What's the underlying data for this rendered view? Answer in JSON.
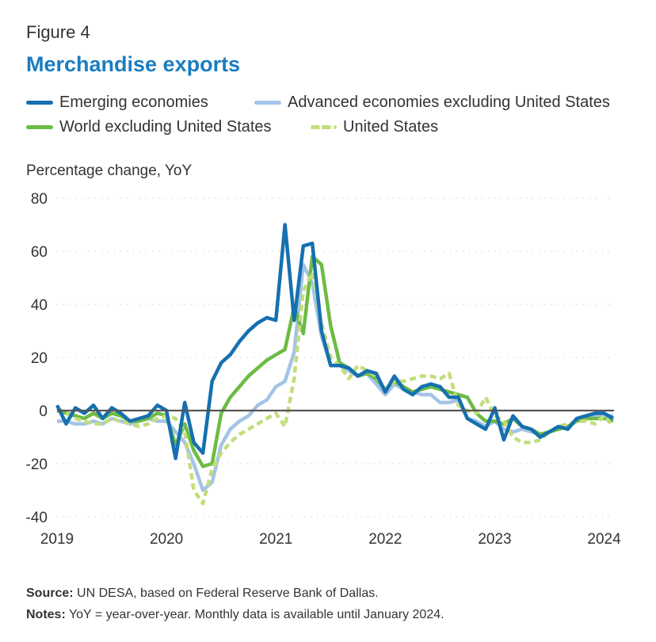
{
  "figure_label": "Figure 4",
  "title": "Merchandise exports",
  "source_label": "Source:",
  "source_text": "UN DESA, based on Federal Reserve Bank of Dallas.",
  "notes_label": "Notes:",
  "notes_text": "YoY = year-over-year. Monthly data is available until January 2024.",
  "chart_data": {
    "type": "line",
    "ylabel": "Percentage change, YoY",
    "ylim": [
      -40,
      80
    ],
    "yticks": [
      -40,
      -20,
      0,
      20,
      40,
      60,
      80
    ],
    "xlim": [
      2019.0,
      2024.09
    ],
    "xticks": [
      2019,
      2020,
      2021,
      2022,
      2023,
      2024
    ],
    "grid": "dotted horizontal",
    "zero_line": true,
    "legend_position": "top",
    "series": [
      {
        "name": "Emerging economies",
        "color": "#1570b0",
        "style": "solid",
        "x": [
          2019.0,
          2019.083,
          2019.167,
          2019.25,
          2019.333,
          2019.417,
          2019.5,
          2019.583,
          2019.667,
          2019.75,
          2019.833,
          2019.917,
          2020.0,
          2020.083,
          2020.167,
          2020.25,
          2020.333,
          2020.417,
          2020.5,
          2020.583,
          2020.667,
          2020.75,
          2020.833,
          2020.917,
          2021.0,
          2021.083,
          2021.167,
          2021.25,
          2021.333,
          2021.417,
          2021.5,
          2021.583,
          2021.667,
          2021.75,
          2021.833,
          2021.917,
          2022.0,
          2022.083,
          2022.167,
          2022.25,
          2022.333,
          2022.417,
          2022.5,
          2022.583,
          2022.667,
          2022.75,
          2022.833,
          2022.917,
          2023.0,
          2023.083,
          2023.167,
          2023.25,
          2023.333,
          2023.417,
          2023.5,
          2023.583,
          2023.667,
          2023.75,
          2023.833,
          2023.917,
          2024.0,
          2024.083
        ],
        "values": [
          2,
          -5,
          1,
          -1,
          2,
          -3,
          1,
          -1,
          -4,
          -3,
          -2,
          2,
          0,
          -18,
          3,
          -12,
          -16,
          11,
          18,
          21,
          26,
          30,
          33,
          35,
          34,
          70,
          34,
          62,
          63,
          30,
          17,
          17,
          16,
          13,
          15,
          14,
          7,
          13,
          8,
          6,
          9,
          10,
          9,
          5,
          5,
          -3,
          -5,
          -7,
          1,
          -11,
          -2,
          -6,
          -7,
          -10,
          -8,
          -6,
          -7,
          -3,
          -2,
          -1,
          -1,
          -3
        ]
      },
      {
        "name": "Advanced economies excluding United States",
        "color": "#a3c4e6",
        "style": "solid",
        "x": [
          2019.0,
          2019.083,
          2019.167,
          2019.25,
          2019.333,
          2019.417,
          2019.5,
          2019.583,
          2019.667,
          2019.75,
          2019.833,
          2019.917,
          2020.0,
          2020.083,
          2020.167,
          2020.25,
          2020.333,
          2020.417,
          2020.5,
          2020.583,
          2020.667,
          2020.75,
          2020.833,
          2020.917,
          2021.0,
          2021.083,
          2021.167,
          2021.25,
          2021.333,
          2021.417,
          2021.5,
          2021.583,
          2021.667,
          2021.75,
          2021.833,
          2021.917,
          2022.0,
          2022.083,
          2022.167,
          2022.25,
          2022.333,
          2022.417,
          2022.5,
          2022.583,
          2022.667,
          2022.75,
          2022.833,
          2022.917,
          2023.0,
          2023.083,
          2023.167,
          2023.25,
          2023.333,
          2023.417,
          2023.5,
          2023.583,
          2023.667,
          2023.75,
          2023.833,
          2023.917,
          2024.0,
          2024.083
        ],
        "values": [
          -4,
          -4,
          -5,
          -5,
          -4,
          -5,
          -3,
          -4,
          -5,
          -4,
          -3,
          -4,
          -4,
          -8,
          -12,
          -20,
          -30,
          -27,
          -13,
          -7,
          -4,
          -2,
          2,
          4,
          9,
          11,
          22,
          55,
          48,
          28,
          17,
          17,
          15,
          13,
          14,
          10,
          6,
          10,
          8,
          7,
          6,
          6,
          3,
          3,
          4,
          -3,
          -4,
          -6,
          -4,
          -7,
          -8,
          -7,
          -8,
          -9,
          -8,
          -7,
          -6,
          -4,
          -3,
          -2,
          -2,
          -2
        ]
      },
      {
        "name": "World excluding United States",
        "color": "#6dbb45",
        "style": "solid",
        "x": [
          2019.0,
          2019.083,
          2019.167,
          2019.25,
          2019.333,
          2019.417,
          2019.5,
          2019.583,
          2019.667,
          2019.75,
          2019.833,
          2019.917,
          2020.0,
          2020.083,
          2020.167,
          2020.25,
          2020.333,
          2020.417,
          2020.5,
          2020.583,
          2020.667,
          2020.75,
          2020.833,
          2020.917,
          2021.0,
          2021.083,
          2021.167,
          2021.25,
          2021.333,
          2021.417,
          2021.5,
          2021.583,
          2021.667,
          2021.75,
          2021.833,
          2021.917,
          2022.0,
          2022.083,
          2022.167,
          2022.25,
          2022.333,
          2022.417,
          2022.5,
          2022.583,
          2022.667,
          2022.75,
          2022.833,
          2022.917,
          2023.0,
          2023.083,
          2023.167,
          2023.25,
          2023.333,
          2023.417,
          2023.5,
          2023.583,
          2023.667,
          2023.75,
          2023.833,
          2023.917,
          2024.0,
          2024.083
        ],
        "values": [
          0,
          -1,
          -2,
          -3,
          -1,
          -3,
          -1,
          -2,
          -4,
          -4,
          -3,
          -1,
          -2,
          -13,
          -5,
          -15,
          -21,
          -20,
          -1,
          5,
          9,
          13,
          16,
          19,
          21,
          23,
          39,
          29,
          58,
          55,
          32,
          18,
          16,
          13,
          14,
          12,
          8,
          11,
          9,
          7,
          8,
          9,
          8,
          7,
          6,
          5,
          -1,
          -4,
          -4,
          -5,
          -3,
          -6,
          -7,
          -9,
          -8,
          -7,
          -6,
          -4,
          -3,
          -3,
          -3,
          -4
        ]
      },
      {
        "name": "United States",
        "color": "#c2dd7c",
        "style": "dashed",
        "x": [
          2019.0,
          2019.083,
          2019.167,
          2019.25,
          2019.333,
          2019.417,
          2019.5,
          2019.583,
          2019.667,
          2019.75,
          2019.833,
          2019.917,
          2020.0,
          2020.083,
          2020.167,
          2020.25,
          2020.333,
          2020.417,
          2020.5,
          2020.583,
          2020.667,
          2020.75,
          2020.833,
          2020.917,
          2021.0,
          2021.083,
          2021.167,
          2021.25,
          2021.333,
          2021.417,
          2021.5,
          2021.583,
          2021.667,
          2021.75,
          2021.833,
          2021.917,
          2022.0,
          2022.083,
          2022.167,
          2022.25,
          2022.333,
          2022.417,
          2022.5,
          2022.583,
          2022.667,
          2022.75,
          2022.833,
          2022.917,
          2023.0,
          2023.083,
          2023.167,
          2023.25,
          2023.333,
          2023.417,
          2023.5,
          2023.583,
          2023.667,
          2023.75,
          2023.833,
          2023.917,
          2024.0,
          2024.083
        ],
        "values": [
          1,
          -1,
          -3,
          -4,
          -5,
          -5,
          -3,
          -4,
          -5,
          -6,
          -5,
          -3,
          -2,
          -3,
          -8,
          -30,
          -35,
          -22,
          -16,
          -12,
          -9,
          -7,
          -5,
          -3,
          -1,
          -6,
          12,
          45,
          52,
          33,
          20,
          17,
          12,
          17,
          15,
          13,
          8,
          11,
          11,
          12,
          13,
          13,
          12,
          14,
          2,
          0,
          -1,
          5,
          -2,
          -4,
          -10,
          -12,
          -12,
          -11,
          -8,
          -6,
          -5,
          -4,
          -4,
          -5,
          -2,
          -6
        ]
      }
    ]
  }
}
